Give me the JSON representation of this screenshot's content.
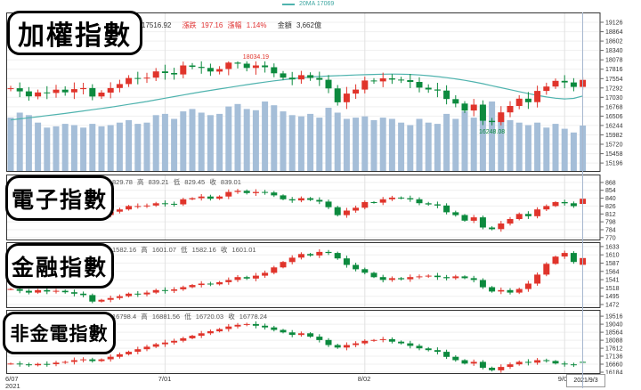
{
  "legend": {
    "label": "20MA 17069"
  },
  "colors": {
    "up": "#e0342b",
    "down": "#0c8a3e",
    "ma": "#4fb3ae",
    "volume": "#a5bed8",
    "grid": "#efefef",
    "month_grid": "#e2e2e2",
    "border": "#333333",
    "crosshair": "#a7b7cf",
    "tick_text": "#333333"
  },
  "panels": [
    {
      "title": "加權指數",
      "header": {
        "close": "17516.92",
        "change_label": "漲跌",
        "change": "197.16",
        "pct_label": "漲幅",
        "pct": "1.14%",
        "amount_label": "金額",
        "amount": "3,662億"
      }
    },
    {
      "title": "電子指數",
      "header": {
        "open": "829.78",
        "high_label": "高",
        "high": "839.21",
        "low_label": "低",
        "low": "829.45",
        "close_label": "收",
        "close": "839.01"
      }
    },
    {
      "title": "金融指數",
      "header": {
        "open": "1582.16",
        "high_label": "高",
        "high": "1601.07",
        "low_label": "低",
        "low": "1582.16",
        "close_label": "收",
        "close": "1601.01"
      }
    },
    {
      "title": "非金電指數",
      "header": {
        "open": "16798.4",
        "high_label": "高",
        "high": "16881.56",
        "low_label": "低",
        "low": "16720.03",
        "close_label": "收",
        "close": "16778.24"
      }
    }
  ],
  "xaxis": {
    "labels": [
      {
        "text": "6/07",
        "x": 6,
        "align": "left"
      },
      {
        "text": "7/01",
        "x": 185,
        "align": "center"
      },
      {
        "text": "8/02",
        "x": 409,
        "align": "center"
      },
      {
        "text": "9/01",
        "x": 634,
        "align": "center"
      }
    ],
    "year": "2021",
    "tooltip": "2021/9/3"
  },
  "chart_data": [
    {
      "type": "candlestick",
      "name": "加權指數",
      "h": 179,
      "ylim": [
        14950,
        19400
      ],
      "ticks": [
        19126,
        18864,
        18602,
        18340,
        18078,
        17816,
        17554,
        17292,
        17030,
        16768,
        16506,
        16244,
        15982,
        15720,
        15458,
        15196
      ],
      "month_idx": [
        17,
        39,
        61
      ],
      "clamp": [
        16248.08,
        18034.19
      ],
      "closes": [
        17285,
        17197,
        17057,
        17168,
        17154,
        17245,
        17170,
        17260,
        17290,
        17055,
        17163,
        17290,
        17400,
        17570,
        17567,
        17580,
        17755,
        17710,
        17670,
        17920,
        17880,
        17850,
        17750,
        17820,
        18000,
        17970,
        17850,
        17920,
        17870,
        17700,
        17580,
        17530,
        17650,
        17572,
        17520,
        17280,
        16893,
        17135,
        17247,
        17500,
        17475,
        17560,
        17526,
        17510,
        17460,
        17300,
        17250,
        17219,
        16982,
        16858,
        16661,
        16826,
        16375,
        16341,
        16611,
        16790,
        16994,
        16895,
        17209,
        17331,
        17490,
        17445,
        17320,
        17516.92
      ],
      "volumes": [
        4300,
        4700,
        4500,
        3900,
        3500,
        3600,
        3800,
        3700,
        3500,
        3800,
        3600,
        3700,
        3900,
        4100,
        3800,
        3900,
        4500,
        4600,
        4200,
        4800,
        5000,
        4700,
        4500,
        4600,
        5200,
        5400,
        5000,
        4900,
        5600,
        5300,
        4800,
        4500,
        4400,
        4600,
        4300,
        5100,
        4700,
        4200,
        4300,
        4400,
        4100,
        4300,
        4200,
        3900,
        3700,
        4200,
        3900,
        3800,
        4600,
        4200,
        4800,
        4300,
        5200,
        5600,
        4500,
        4100,
        3900,
        3700,
        3900,
        3500,
        3800,
        3400,
        3100,
        3662
      ],
      "volume_max": 5600,
      "ma20": [
        16400,
        16430,
        16460,
        16490,
        16520,
        16550,
        16580,
        16615,
        16650,
        16685,
        16720,
        16755,
        16795,
        16835,
        16875,
        16915,
        16960,
        17005,
        17050,
        17095,
        17140,
        17185,
        17225,
        17265,
        17305,
        17345,
        17385,
        17420,
        17455,
        17490,
        17520,
        17550,
        17575,
        17600,
        17615,
        17625,
        17635,
        17645,
        17655,
        17663,
        17670,
        17676,
        17680,
        17678,
        17670,
        17655,
        17635,
        17610,
        17580,
        17545,
        17505,
        17460,
        17410,
        17355,
        17300,
        17245,
        17190,
        17135,
        17085,
        17040,
        17005,
        16985,
        17000,
        17069
      ],
      "overrides": [
        {
          "i": 27,
          "h": 18034.19
        },
        {
          "i": 53,
          "l": 16248.08
        },
        {
          "i": 63,
          "c": 17516.92
        }
      ],
      "annotations": [
        {
          "i": 27,
          "v": 18034.19,
          "text": "18034.19",
          "pos": "above",
          "color": "#e0342b"
        },
        {
          "i": 53,
          "v": 16248.08,
          "text": "16248.08",
          "pos": "below",
          "color": "#0c8a3e"
        }
      ]
    },
    {
      "type": "candlestick",
      "name": "電子指數",
      "h": 74,
      "ylim": [
        765,
        882
      ],
      "ticks": [
        868,
        854,
        840,
        826,
        812,
        798,
        784,
        770
      ],
      "month_idx": [
        17,
        39,
        61
      ],
      "closes": [
        812,
        809,
        805,
        810,
        809,
        814,
        812,
        815,
        816,
        806,
        810,
        816,
        820,
        826,
        826,
        827,
        831,
        830,
        829,
        838,
        840,
        843,
        839,
        843,
        851,
        853,
        849,
        851,
        850,
        845,
        838,
        836,
        840,
        837,
        834,
        824,
        810,
        818,
        823,
        833,
        832,
        838,
        841,
        840,
        838,
        831,
        829,
        827,
        815,
        810,
        800,
        806,
        788,
        785,
        795,
        803,
        812,
        808,
        820,
        826,
        833,
        831,
        826,
        839.01
      ],
      "overrides": [
        {
          "i": 63,
          "o": 829.78,
          "h": 839.21,
          "l": 829.45,
          "c": 839.01
        }
      ],
      "annotations": []
    },
    {
      "type": "candlestick",
      "name": "金融指數",
      "h": 74,
      "ylim": [
        1462,
        1645
      ],
      "ticks": [
        1633,
        1610,
        1587,
        1564,
        1541,
        1518,
        1495,
        1472
      ],
      "month_idx": [
        17,
        39,
        61
      ],
      "closes": [
        1515,
        1510,
        1505,
        1512,
        1508,
        1510,
        1506,
        1502,
        1498,
        1480,
        1485,
        1490,
        1495,
        1502,
        1500,
        1505,
        1512,
        1510,
        1514,
        1520,
        1526,
        1530,
        1528,
        1534,
        1540,
        1548,
        1544,
        1552,
        1560,
        1575,
        1590,
        1602,
        1612,
        1608,
        1618,
        1615,
        1600,
        1582,
        1570,
        1560,
        1548,
        1540,
        1545,
        1542,
        1548,
        1550,
        1552,
        1548,
        1545,
        1550,
        1545,
        1540,
        1520,
        1508,
        1512,
        1505,
        1515,
        1530,
        1555,
        1585,
        1605,
        1615,
        1590,
        1601.01
      ],
      "overrides": [
        {
          "i": 63,
          "o": 1582.16,
          "h": 1601.07,
          "l": 1582.16,
          "c": 1601.01
        }
      ],
      "annotations": []
    },
    {
      "type": "candlestick",
      "name": "非金電指數",
      "h": 72,
      "ylim": [
        16079,
        19892
      ],
      "ticks": [
        19516,
        19040,
        18564,
        18088,
        17612,
        17136,
        16660,
        16184
      ],
      "month_idx": [
        17,
        39,
        61
      ],
      "closes": [
        16700,
        16650,
        16600,
        16680,
        16660,
        16750,
        16800,
        16900,
        16950,
        16850,
        16950,
        17100,
        17250,
        17400,
        17550,
        17700,
        17850,
        17950,
        18050,
        18200,
        18350,
        18500,
        18620,
        18750,
        18900,
        19000,
        19050,
        18950,
        18850,
        18700,
        18550,
        18400,
        18500,
        18300,
        18100,
        17800,
        17650,
        17800,
        17900,
        18050,
        18100,
        18150,
        18000,
        17900,
        17750,
        17600,
        17500,
        17400,
        17100,
        16900,
        16700,
        16800,
        16450,
        16300,
        16500,
        16650,
        16800,
        16750,
        16900,
        16850,
        16700,
        16650,
        16600,
        16778.24
      ],
      "overrides": [
        {
          "i": 63,
          "o": 16798.4,
          "h": 16881.56,
          "l": 16720.03,
          "c": 16778.24
        }
      ],
      "annotations": []
    }
  ]
}
